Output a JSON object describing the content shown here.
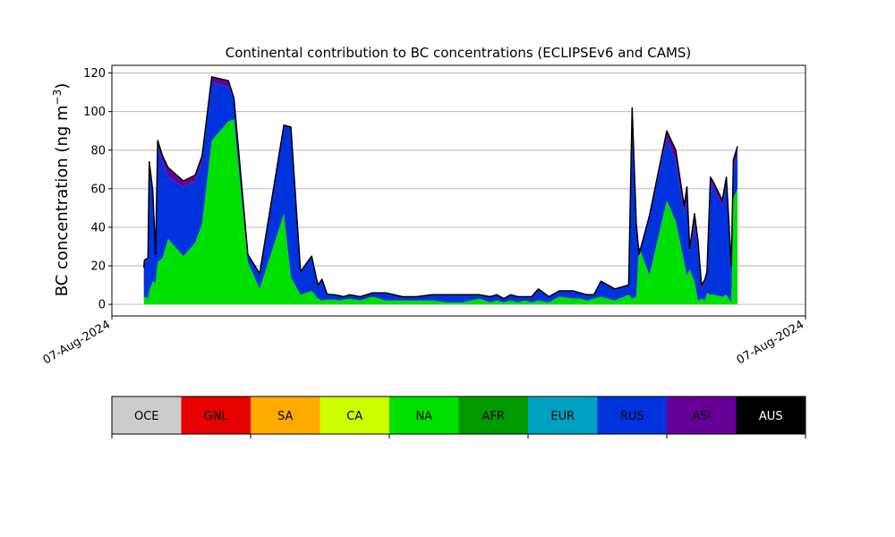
{
  "chart_data": {
    "type": "area",
    "stacked": true,
    "title": "Continental contribution to BC concentrations (ECLIPSEv6 and CAMS)",
    "ylabel_main": "BC concentration (ng m",
    "ylabel_sup": "−3",
    "ylabel_close": ")",
    "ylim": [
      -6,
      124
    ],
    "yticks": [
      0,
      20,
      40,
      60,
      80,
      100,
      120
    ],
    "ytick_labels": [
      "0",
      "20",
      "40",
      "60",
      "80",
      "100",
      "120"
    ],
    "xlim": [
      0,
      100
    ],
    "xtick_labels": [
      "07-Aug-2024",
      "07-Aug-2024"
    ],
    "grid": "horizontal",
    "x": [
      4.6,
      4.7,
      5.2,
      5.4,
      5.9,
      6.3,
      6.6,
      7.3,
      8.1,
      10.3,
      12.0,
      13.0,
      14.4,
      16.8,
      17.6,
      19.6,
      21.3,
      24.8,
      25.8,
      27.2,
      28.8,
      29.7,
      30.3,
      31.0,
      31.6,
      32.1,
      32.8,
      33.4,
      34.3,
      35.8,
      37.6,
      39.5,
      41.9,
      43.9,
      46.2,
      48.3,
      50.5,
      53.0,
      54.5,
      55.5,
      56.5,
      57.5,
      58.5,
      59.5,
      60.5,
      61.5,
      63.0,
      64.5,
      66.5,
      67.5,
      68.5,
      69.5,
      70.5,
      72.5,
      74.5,
      75.0,
      75.6,
      76.0,
      77.5,
      80.0,
      81.3,
      82.5,
      82.9,
      83.3,
      84.0,
      84.5,
      85.0,
      85.5,
      85.8,
      86.3,
      86.8,
      88.0,
      88.6,
      89.3,
      89.6,
      90.2
    ],
    "series": [
      {
        "name": "OCE",
        "color": "#cccccc",
        "values": [
          0,
          0,
          0,
          0,
          0,
          0,
          0,
          0,
          0,
          0,
          0,
          0,
          0,
          0,
          0,
          0,
          0,
          0,
          0,
          0,
          0,
          0,
          0,
          0,
          0,
          0,
          0,
          0,
          0,
          0,
          0,
          0,
          0,
          0,
          0,
          0,
          0,
          0,
          0,
          0,
          0,
          0,
          0,
          0,
          0,
          0,
          0,
          0,
          0,
          0,
          0,
          0,
          0,
          0,
          0,
          0,
          0,
          0,
          0,
          0,
          0,
          0,
          0,
          0,
          0,
          0,
          0,
          0,
          0,
          0,
          0,
          0,
          0,
          0,
          0,
          0
        ]
      },
      {
        "name": "GNL",
        "color": "#e60000",
        "values": [
          0,
          0,
          0,
          0,
          0,
          0,
          0,
          0,
          0,
          0,
          0,
          0,
          0,
          0,
          0,
          0,
          0,
          0,
          0,
          0,
          0,
          0,
          0,
          0,
          0,
          0,
          0,
          0,
          0,
          0,
          0,
          0,
          0,
          0,
          0,
          0,
          0,
          0,
          0,
          0,
          0,
          0,
          0,
          0,
          0,
          0,
          0,
          0,
          0,
          0,
          0,
          0,
          0,
          0,
          0,
          0,
          0,
          0,
          0,
          0,
          0,
          0,
          0,
          0,
          0,
          0,
          0,
          0,
          0,
          0,
          0,
          0,
          0,
          0,
          0,
          0
        ]
      },
      {
        "name": "SA",
        "color": "#ffaa00",
        "values": [
          0,
          0,
          0,
          0,
          0,
          0,
          0,
          0,
          0,
          0,
          0,
          0,
          0,
          0,
          0,
          0,
          0,
          0,
          0,
          0,
          0,
          0,
          0,
          0,
          0,
          0,
          0,
          0,
          0,
          0,
          0,
          0,
          0,
          0,
          0,
          0,
          0,
          0,
          0,
          0,
          0,
          0,
          0,
          0,
          0,
          0,
          0,
          0,
          0,
          0,
          0,
          0,
          0,
          0,
          0,
          0,
          0,
          0,
          0,
          0,
          0,
          0,
          0,
          0,
          0,
          0,
          0,
          0,
          0,
          0,
          0,
          0,
          0,
          0,
          0,
          0
        ]
      },
      {
        "name": "CA",
        "color": "#ccff00",
        "values": [
          0,
          0,
          0,
          0,
          0,
          0,
          0,
          0,
          0,
          0,
          0,
          0,
          0,
          0,
          0,
          0,
          0,
          0,
          0,
          0,
          0,
          0,
          0,
          0,
          0,
          0,
          0,
          0,
          0,
          0,
          0,
          0,
          0,
          0,
          0,
          0,
          0,
          0,
          0,
          0,
          0,
          0,
          0,
          0,
          0,
          0,
          0,
          0,
          0,
          0,
          0,
          0,
          0,
          0,
          0,
          0,
          0,
          0,
          0,
          0,
          0,
          0,
          0,
          0,
          0,
          0,
          0,
          0,
          0,
          0,
          0,
          0,
          0,
          0,
          0,
          0
        ]
      },
      {
        "name": "NA",
        "color": "#00e000",
        "values": [
          3,
          4,
          3,
          7,
          12,
          11,
          22,
          24,
          34,
          25,
          32,
          42,
          85,
          95,
          96,
          22,
          8,
          47,
          14,
          5,
          7,
          3,
          2,
          2.5,
          2.5,
          2.5,
          2,
          2.5,
          3,
          2,
          4,
          2,
          2,
          2,
          2,
          1,
          1,
          3,
          1,
          2,
          1,
          2,
          1,
          2,
          1,
          2,
          1,
          4,
          3,
          3,
          2,
          3,
          4,
          2,
          5,
          3,
          4,
          30,
          15,
          54,
          43,
          22,
          15,
          18,
          12,
          2,
          3,
          2,
          6,
          5,
          5,
          4,
          5,
          1,
          55,
          60
        ]
      },
      {
        "name": "AFR",
        "color": "#009900",
        "values": [
          0,
          0,
          0,
          0,
          0,
          0,
          0,
          0,
          0,
          0,
          0,
          0,
          0,
          0,
          0,
          0,
          0,
          0,
          0,
          0,
          0,
          0,
          0,
          0,
          0,
          0,
          0,
          0,
          0,
          0,
          0,
          0,
          0,
          0,
          0,
          0,
          0,
          0,
          0,
          0,
          0,
          0,
          0,
          0,
          0,
          0,
          0,
          0,
          0,
          0,
          0,
          0,
          0,
          0,
          0,
          0,
          0,
          0,
          0,
          0,
          0,
          0,
          0,
          0,
          0,
          0,
          0,
          0,
          0,
          0,
          0,
          0,
          0,
          0,
          0,
          0
        ]
      },
      {
        "name": "EUR",
        "color": "#00a0c0",
        "values": [
          0,
          0,
          0,
          0,
          0,
          0,
          0,
          0,
          0,
          0,
          0,
          0,
          0,
          0,
          0,
          0,
          0,
          0,
          0,
          0,
          0,
          0,
          0,
          0,
          0,
          0,
          0,
          0,
          0,
          0,
          0,
          0,
          0,
          0,
          0,
          0,
          0,
          0,
          0,
          0,
          0,
          0,
          0,
          0,
          0,
          0,
          0,
          0,
          0,
          0,
          0,
          0,
          0,
          0,
          0,
          0,
          0,
          0,
          0,
          0,
          0,
          0,
          0,
          0,
          0,
          0,
          0,
          0,
          0,
          0,
          0,
          0,
          0,
          0,
          0,
          0
        ]
      },
      {
        "name": "RUS",
        "color": "#0033dd",
        "values": [
          15,
          18,
          20,
          66,
          46,
          14,
          60,
          50,
          32,
          36,
          32,
          32,
          30,
          18,
          10,
          4,
          8,
          46,
          78,
          12,
          18,
          7,
          11,
          3,
          2.5,
          2.5,
          2.5,
          1.5,
          2,
          2,
          2,
          4,
          2,
          2,
          3,
          4,
          4,
          2,
          3,
          3,
          2,
          3,
          3,
          2,
          3,
          6,
          3,
          3,
          4,
          3,
          3,
          2,
          8,
          6,
          5,
          99,
          38,
          -4,
          31,
          32,
          31,
          25,
          40,
          8,
          29,
          28,
          4,
          9,
          10,
          58,
          55,
          47,
          57,
          18,
          16,
          18
        ]
      },
      {
        "name": "ASI",
        "color": "#660099",
        "values": [
          1,
          1,
          1,
          1,
          1,
          1,
          3,
          3,
          5,
          3,
          3,
          3,
          3,
          3,
          1,
          0,
          0,
          0,
          0,
          0,
          0,
          0,
          0,
          0,
          0,
          0,
          0,
          0,
          0,
          0,
          0,
          0,
          0,
          0,
          0,
          0,
          0,
          0,
          0,
          0,
          0,
          0,
          0,
          0,
          0,
          0,
          0,
          0,
          0,
          0,
          0,
          0,
          0,
          0,
          0,
          0,
          0,
          0,
          0,
          4,
          6,
          4,
          6,
          3,
          6,
          3,
          3,
          2,
          1,
          3,
          3,
          3,
          4,
          1,
          4,
          4
        ]
      },
      {
        "name": "AUS",
        "color": "#000000",
        "values": [
          0,
          0,
          0,
          0,
          0,
          0,
          0,
          0,
          0,
          0,
          0,
          0,
          0,
          0,
          0,
          0,
          0,
          0,
          0,
          0,
          0,
          0,
          0,
          0,
          0,
          0,
          0,
          0,
          0,
          0,
          0,
          0,
          0,
          0,
          0,
          0,
          0,
          0,
          0,
          0,
          0,
          0,
          0,
          0,
          0,
          0,
          0,
          0,
          0,
          0,
          0,
          0,
          0,
          0,
          0,
          0,
          0,
          0,
          0,
          0,
          0,
          0,
          0,
          0,
          0,
          0,
          0,
          0,
          0,
          0,
          0,
          0,
          0,
          0,
          0,
          0
        ]
      }
    ],
    "legend": {
      "placement": "bottom",
      "items": [
        {
          "label": "OCE",
          "color": "#cccccc",
          "text_color": "#000000"
        },
        {
          "label": "GNL",
          "color": "#e60000",
          "text_color": "#000000"
        },
        {
          "label": "SA",
          "color": "#ffaa00",
          "text_color": "#000000"
        },
        {
          "label": "CA",
          "color": "#ccff00",
          "text_color": "#000000"
        },
        {
          "label": "NA",
          "color": "#00e000",
          "text_color": "#000000"
        },
        {
          "label": "AFR",
          "color": "#009900",
          "text_color": "#000000"
        },
        {
          "label": "EUR",
          "color": "#00a0c0",
          "text_color": "#000000"
        },
        {
          "label": "RUS",
          "color": "#0033dd",
          "text_color": "#000000"
        },
        {
          "label": "ASI",
          "color": "#660099",
          "text_color": "#000000"
        },
        {
          "label": "AUS",
          "color": "#000000",
          "text_color": "#ffffff"
        }
      ]
    }
  }
}
